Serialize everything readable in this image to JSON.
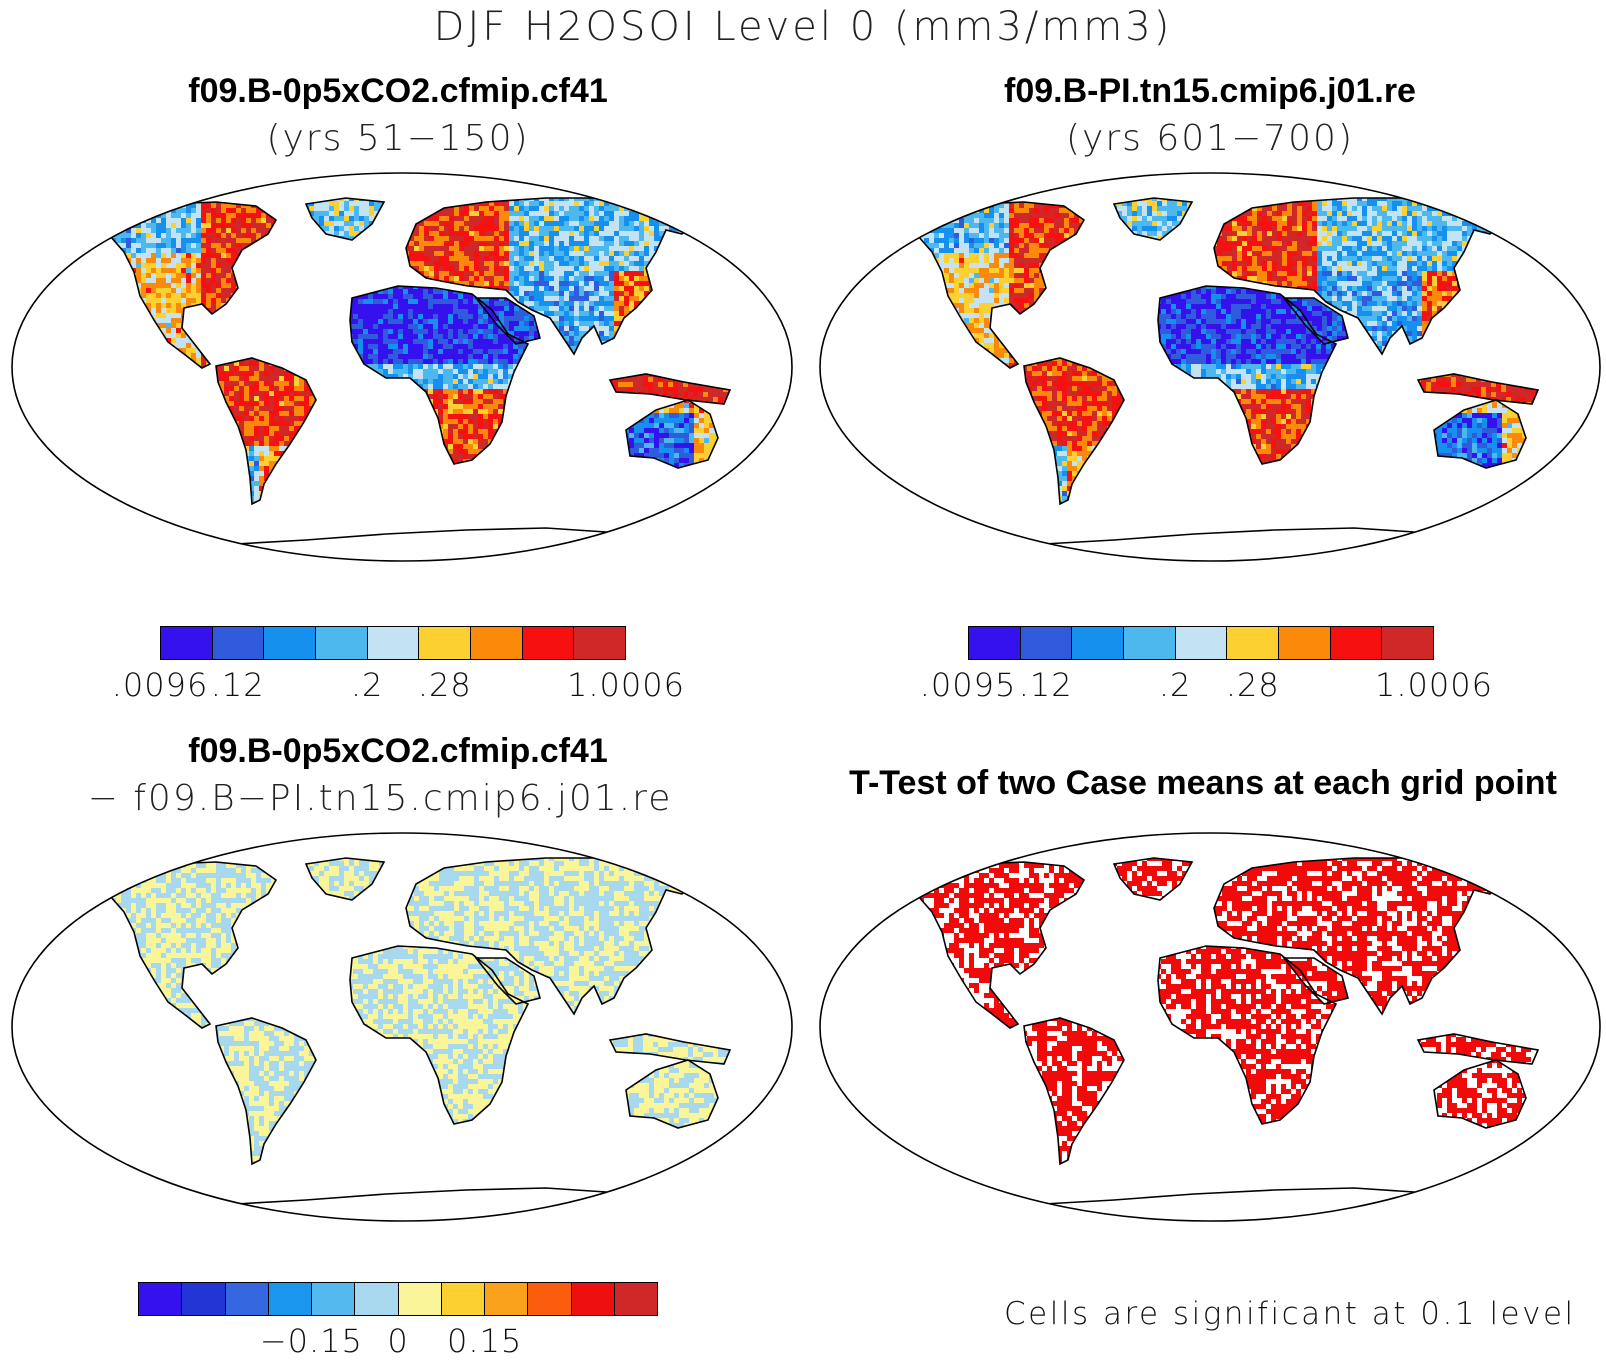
{
  "figure": {
    "title": "DJF H2OSOI Level 0 (mm3/mm3)"
  },
  "panels": [
    {
      "id": "case1",
      "line1": "f09.B-0p5xCO2.cfmip.cf41",
      "line2": "(yrs 51−150)",
      "type": "filled-map"
    },
    {
      "id": "case2",
      "line1": "f09.B-PI.tn15.cmip6.j01.re",
      "line2": "(yrs 601−700)",
      "type": "filled-map"
    },
    {
      "id": "difference",
      "line1": "f09.B-0p5xCO2.cfmip.cf41",
      "line2": "− f09.B−PI.tn15.cmip6.j01.re",
      "type": "filled-map"
    },
    {
      "id": "ttest",
      "line1": "T-Test of two Case means at each grid point",
      "line2": "",
      "note": "Cells are significant at 0.1 level",
      "type": "significance-map"
    }
  ],
  "colorbars": [
    {
      "id": "cbar1",
      "colors": [
        "#3511ee",
        "#2f5bdc",
        "#1590ee",
        "#4db8ee",
        "#c3e3f3",
        "#fbd030",
        "#fb8a0b",
        "#f71010",
        "#d02828"
      ],
      "labels": [
        ".0096",
        ".12",
        ".2",
        ".28",
        "1.0006"
      ],
      "label_positions": [
        0,
        1.5,
        4,
        5.5,
        9
      ]
    },
    {
      "id": "cbar2",
      "colors": [
        "#3511ee",
        "#2f5bdc",
        "#1590ee",
        "#4db8ee",
        "#c3e3f3",
        "#fbd030",
        "#fb8a0b",
        "#f71010",
        "#d02828"
      ],
      "labels": [
        ".0095",
        ".12",
        ".2",
        ".28",
        "1.0006"
      ],
      "label_positions": [
        0,
        1.5,
        4,
        5.5,
        9
      ]
    },
    {
      "id": "cbar3",
      "colors": [
        "#3511ee",
        "#2236d6",
        "#3568e0",
        "#1a96ee",
        "#53b9ef",
        "#a8d8ee",
        "#fbf59a",
        "#fbd030",
        "#fba21c",
        "#fb5c0e",
        "#ee1010",
        "#d02828"
      ],
      "labels": [
        "−0.15",
        "0",
        "0.15"
      ],
      "label_positions": [
        4,
        6,
        8
      ]
    }
  ],
  "colors": {
    "significance": "#f20a0a",
    "coast": "#000000"
  }
}
